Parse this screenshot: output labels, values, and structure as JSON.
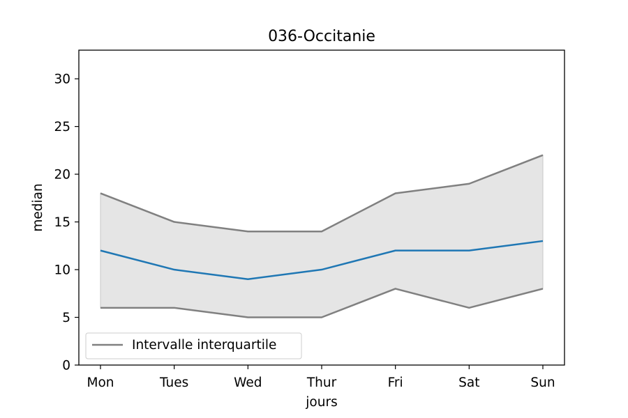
{
  "chart_data": {
    "type": "line",
    "title": "036-Occitanie",
    "xlabel": "jours",
    "ylabel": "median",
    "categories": [
      "Mon",
      "Tues",
      "Wed",
      "Thur",
      "Fri",
      "Sat",
      "Sun"
    ],
    "ylim": [
      0,
      33
    ],
    "yticks": [
      0,
      5,
      10,
      15,
      20,
      25,
      30
    ],
    "median": [
      12,
      10,
      9,
      10,
      12,
      12,
      13
    ],
    "q1": [
      6,
      6,
      5,
      5,
      8,
      6,
      8
    ],
    "q3": [
      18,
      15,
      14,
      14,
      18,
      19,
      22
    ],
    "legend": {
      "entries": [
        "Intervalle interquartile"
      ],
      "placement": "lower-left"
    },
    "grid": false,
    "colors": {
      "median_line": "#1f77b4",
      "quartile_lines": "#808080",
      "band_fill": "#e5e5e5"
    }
  }
}
